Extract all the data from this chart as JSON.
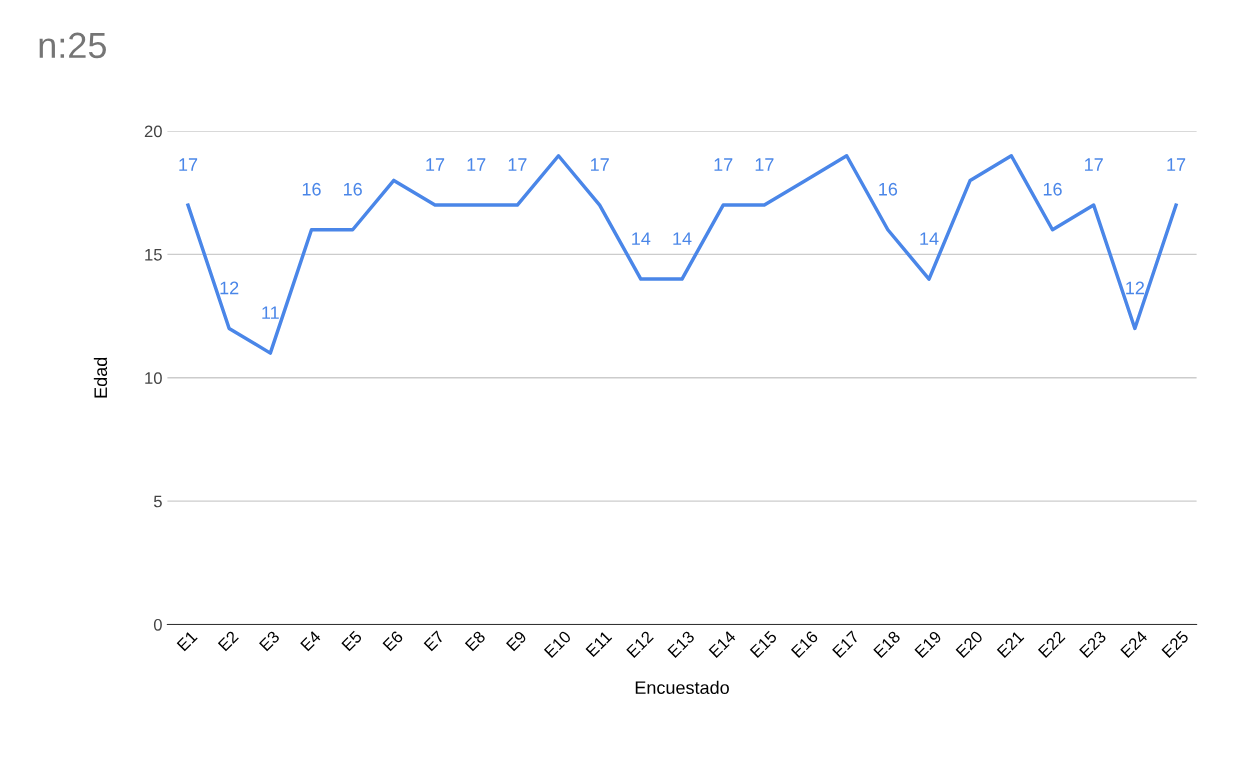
{
  "chart_data": {
    "type": "line",
    "title": "n:25",
    "xlabel": "Encuestado",
    "ylabel": "Edad",
    "categories": [
      "E1",
      "E2",
      "E3",
      "E4",
      "E5",
      "E6",
      "E7",
      "E8",
      "E9",
      "E10",
      "E11",
      "E12",
      "E13",
      "E14",
      "E15",
      "E16",
      "E17",
      "E18",
      "E19",
      "E20",
      "E21",
      "E22",
      "E23",
      "E24",
      "E25"
    ],
    "series": [
      {
        "color": "#4a86e8",
        "values": [
          17,
          12,
          11,
          16,
          16,
          18,
          17,
          17,
          17,
          19,
          17,
          14,
          14,
          17,
          17,
          18,
          19,
          16,
          14,
          18,
          19,
          16,
          17,
          12,
          17
        ],
        "value_labels": [
          "17",
          "12",
          "11",
          "16",
          "16",
          null,
          "17",
          "17",
          "17",
          null,
          "17",
          "14",
          "14",
          "17",
          "17",
          null,
          null,
          "16",
          "14",
          null,
          null,
          "16",
          "17",
          "12",
          "17"
        ]
      }
    ],
    "ylim": [
      0,
      20
    ],
    "yticks": [
      0,
      5,
      10,
      15,
      20
    ],
    "grid": "y",
    "legend": false,
    "marker": "none",
    "line_style": "solid"
  }
}
